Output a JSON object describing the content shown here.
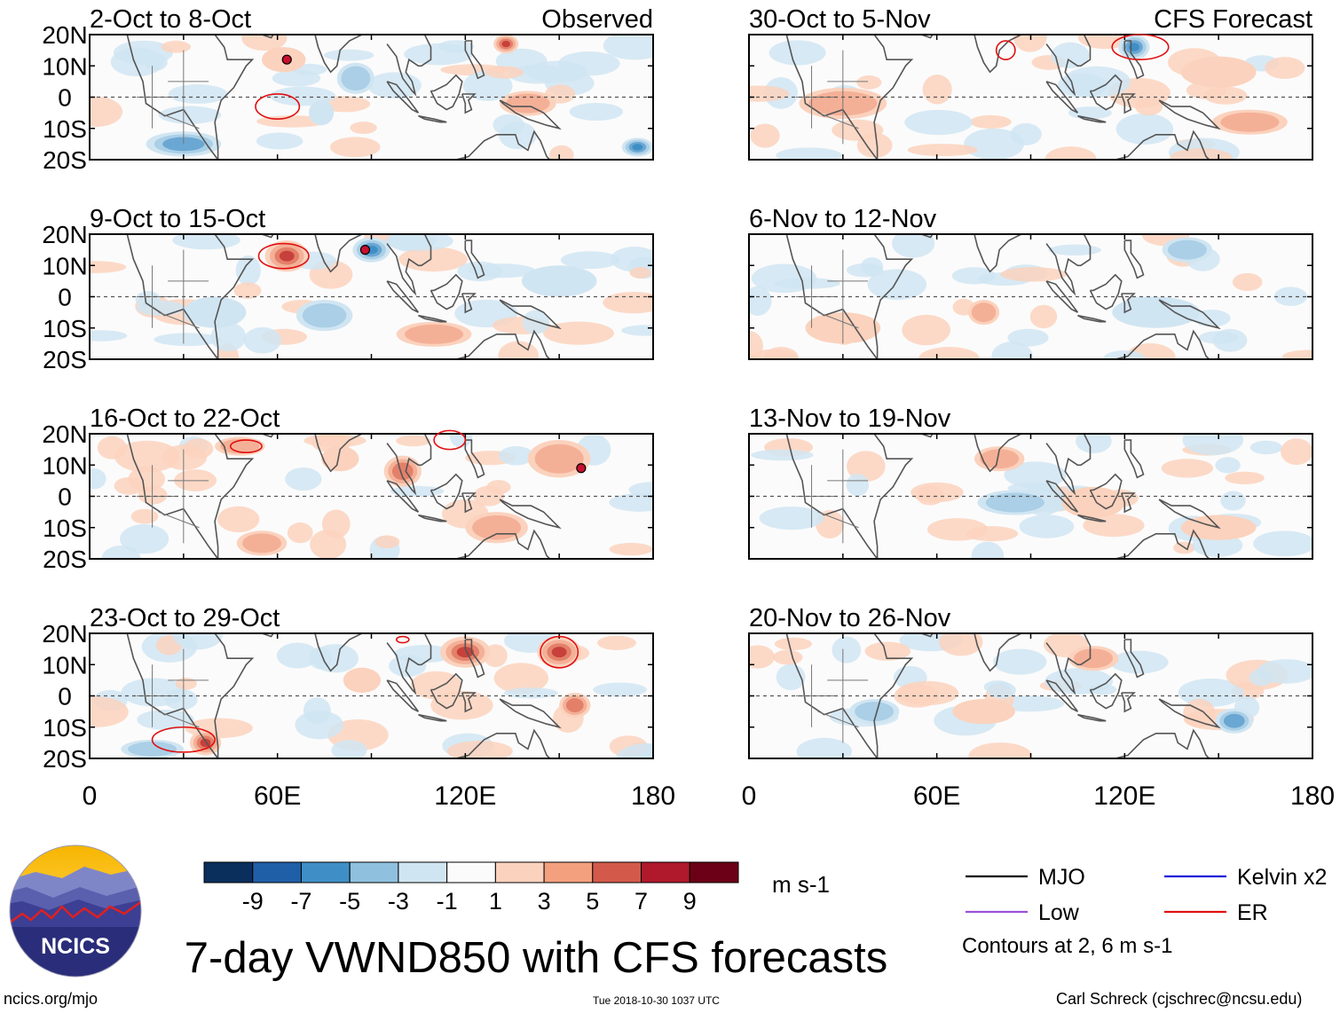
{
  "chart_data": {
    "type": "heatmap",
    "title": "7-day VWND850 with CFS forecasts",
    "variable": "VWND850",
    "units": "m s-1",
    "observed_label": "Observed",
    "forecast_label": "CFS Forecast",
    "xaxis": {
      "range": [
        0,
        180
      ],
      "tick_labels": [
        "0",
        "60E",
        "120E",
        "180"
      ]
    },
    "yaxis": {
      "range": [
        -20,
        20
      ],
      "tick_labels": [
        "20N",
        "10N",
        "0",
        "10S",
        "20S"
      ]
    },
    "colorbar": {
      "tick_labels": [
        "-9",
        "-7",
        "-5",
        "-3",
        "-1",
        "1",
        "3",
        "5",
        "7",
        "9"
      ],
      "colors": [
        "#0b2f5c",
        "#1f5fa8",
        "#3f8fc6",
        "#8fc0de",
        "#d0e5f2",
        "#fbfbfb",
        "#fbd2bd",
        "#f2a07e",
        "#d35a4a",
        "#b0182c",
        "#6b0016"
      ]
    },
    "panels_observed": [
      {
        "period": "2-Oct to 8-Oct"
      },
      {
        "period": "9-Oct to 15-Oct"
      },
      {
        "period": "16-Oct to 22-Oct"
      },
      {
        "period": "23-Oct to 29-Oct"
      }
    ],
    "panels_forecast": [
      {
        "period": "30-Oct to 5-Nov"
      },
      {
        "period": "6-Nov to 12-Nov"
      },
      {
        "period": "13-Nov to 19-Nov"
      },
      {
        "period": "20-Nov to 26-Nov"
      }
    ],
    "legend": [
      {
        "label": "MJO",
        "color": "#000000"
      },
      {
        "label": "Kelvin x2",
        "color": "#1a1adb"
      },
      {
        "label": "Low",
        "color": "#9b4fd6"
      },
      {
        "label": "ER",
        "color": "#e01010"
      }
    ],
    "contour_note": "Contours at 2, 6 m s-1"
  },
  "branding": {
    "logo_text": "NCICS",
    "site": "ncics.org/mjo",
    "timestamp": "Tue 2018-10-30 1037 UTC",
    "credit": "Carl Schreck (cjschrec@ncsu.edu)"
  }
}
